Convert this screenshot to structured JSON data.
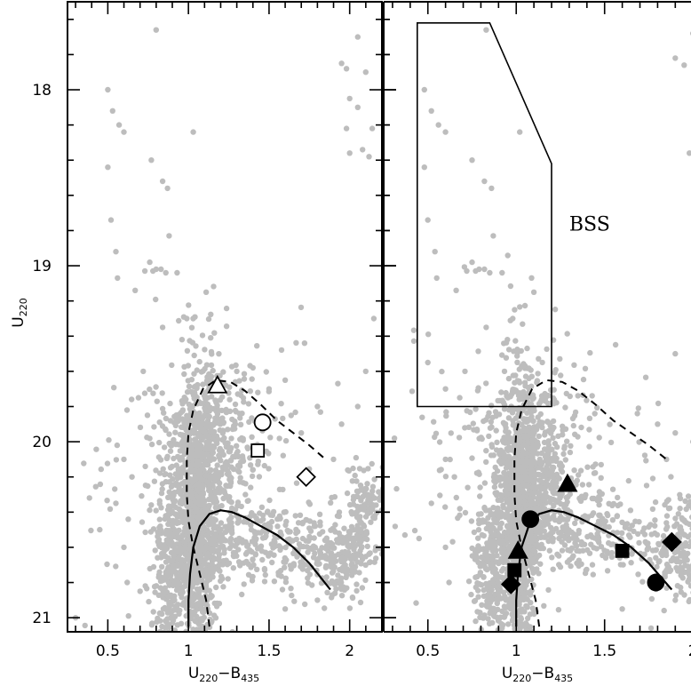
{
  "chart_data": [
    {
      "type": "scatter",
      "panel": "left",
      "xlabel": {
        "main": "U",
        "sub1": "220",
        "sep": "−B",
        "sub2": "435"
      },
      "ylabel": {
        "main": "U",
        "sub": "220"
      },
      "xlim": [
        0.25,
        2.2
      ],
      "ylim": [
        21.08,
        17.5
      ],
      "y_inverted": true,
      "x_ticks": [
        0.5,
        1,
        1.5,
        2
      ],
      "x_tick_labels": [
        "0.5",
        "1",
        "1.5",
        "2"
      ],
      "y_ticks": [
        18,
        19,
        20,
        21
      ],
      "y_tick_labels": [
        "18",
        "19",
        "20",
        "21"
      ],
      "point_color": "#bdbdbd",
      "isochrone_solid": [
        [
          1.0,
          21.05
        ],
        [
          1.0,
          20.9
        ],
        [
          1.01,
          20.75
        ],
        [
          1.03,
          20.6
        ],
        [
          1.07,
          20.48
        ],
        [
          1.13,
          20.41
        ],
        [
          1.2,
          20.39
        ],
        [
          1.27,
          20.4
        ],
        [
          1.35,
          20.43
        ],
        [
          1.45,
          20.48
        ],
        [
          1.55,
          20.53
        ],
        [
          1.65,
          20.6
        ],
        [
          1.75,
          20.69
        ],
        [
          1.88,
          20.84
        ]
      ],
      "isochrone_dashed": [
        [
          1.13,
          21.05
        ],
        [
          1.11,
          20.9
        ],
        [
          1.07,
          20.75
        ],
        [
          1.03,
          20.6
        ],
        [
          1.0,
          20.45
        ],
        [
          0.99,
          20.3
        ],
        [
          0.99,
          20.1
        ],
        [
          1.0,
          19.95
        ],
        [
          1.03,
          19.82
        ],
        [
          1.09,
          19.7
        ],
        [
          1.17,
          19.65
        ],
        [
          1.26,
          19.66
        ],
        [
          1.35,
          19.71
        ],
        [
          1.45,
          19.79
        ],
        [
          1.55,
          19.88
        ],
        [
          1.65,
          19.95
        ],
        [
          1.75,
          20.02
        ],
        [
          1.85,
          20.1
        ]
      ],
      "markers": [
        {
          "shape": "triangle",
          "filled": false,
          "x": 1.18,
          "y": 19.68
        },
        {
          "shape": "circle",
          "filled": false,
          "x": 1.46,
          "y": 19.89
        },
        {
          "shape": "square",
          "filled": false,
          "x": 1.43,
          "y": 20.05
        },
        {
          "shape": "diamond",
          "filled": false,
          "x": 1.73,
          "y": 20.2
        }
      ],
      "sparse_points": [
        [
          0.8,
          17.66
        ],
        [
          0.5,
          18.0
        ],
        [
          0.53,
          18.12
        ],
        [
          0.57,
          18.2
        ],
        [
          0.6,
          18.24
        ],
        [
          0.5,
          18.44
        ],
        [
          0.52,
          18.74
        ],
        [
          0.55,
          18.92
        ],
        [
          0.77,
          18.4
        ],
        [
          0.84,
          18.52
        ],
        [
          0.87,
          18.56
        ],
        [
          0.88,
          18.83
        ],
        [
          0.83,
          19.02
        ],
        [
          0.78,
          19.03
        ],
        [
          0.8,
          19.02
        ],
        [
          0.86,
          19.04
        ],
        [
          0.76,
          18.98
        ],
        [
          0.73,
          19.03
        ],
        [
          0.56,
          19.07
        ],
        [
          0.67,
          19.14
        ],
        [
          0.93,
          19.04
        ],
        [
          1.03,
          18.24
        ],
        [
          1.11,
          19.15
        ],
        [
          0.99,
          19.3
        ],
        [
          0.84,
          19.35
        ],
        [
          0.96,
          19.42
        ],
        [
          0.72,
          19.6
        ],
        [
          0.69,
          19.75
        ],
        [
          1.95,
          17.85
        ],
        [
          1.98,
          17.88
        ],
        [
          2.05,
          17.7
        ],
        [
          2.1,
          17.9
        ],
        [
          2.0,
          18.05
        ],
        [
          2.05,
          18.1
        ],
        [
          2.0,
          18.36
        ],
        [
          2.08,
          18.34
        ],
        [
          2.12,
          18.38
        ],
        [
          1.98,
          18.22
        ],
        [
          2.14,
          18.22
        ],
        [
          1.72,
          19.44
        ],
        [
          2.15,
          19.3
        ],
        [
          2.1,
          19.6
        ],
        [
          1.5,
          19.7
        ],
        [
          1.6,
          19.65
        ],
        [
          1.8,
          19.8
        ],
        [
          2.05,
          19.8
        ],
        [
          1.95,
          19.9
        ],
        [
          1.7,
          19.95
        ],
        [
          1.3,
          19.6
        ],
        [
          1.4,
          19.58
        ],
        [
          0.6,
          20.1
        ],
        [
          0.65,
          20.2
        ],
        [
          0.55,
          20.35
        ],
        [
          0.45,
          20.5
        ],
        [
          0.3,
          21.0
        ],
        [
          0.6,
          20.6
        ],
        [
          0.62,
          20.8
        ],
        [
          0.7,
          20.85
        ],
        [
          1.6,
          20.95
        ],
        [
          1.8,
          20.9
        ],
        [
          1.9,
          20.1
        ]
      ],
      "clouds": [
        {
          "cx": 1.05,
          "cy": 20.45,
          "sx": 0.06,
          "sy": 0.42,
          "n": 900
        },
        {
          "cx": 1.1,
          "cy": 20.2,
          "sx": 0.12,
          "sy": 0.28,
          "n": 450
        },
        {
          "cx": 1.45,
          "cy": 20.55,
          "sx": 0.22,
          "sy": 0.12,
          "n": 260
        },
        {
          "cx": 1.95,
          "cy": 20.65,
          "sx": 0.12,
          "sy": 0.14,
          "n": 220
        },
        {
          "cx": 2.1,
          "cy": 20.35,
          "sx": 0.06,
          "sy": 0.12,
          "n": 90
        },
        {
          "cx": 0.88,
          "cy": 20.75,
          "sx": 0.06,
          "sy": 0.22,
          "n": 240
        },
        {
          "cx": 1.2,
          "cy": 19.95,
          "sx": 0.22,
          "sy": 0.28,
          "n": 140
        },
        {
          "cx": 0.95,
          "cy": 20.2,
          "sx": 0.3,
          "sy": 0.45,
          "n": 130
        }
      ]
    },
    {
      "type": "scatter",
      "panel": "right",
      "xlabel": {
        "main": "U",
        "sub1": "220",
        "sep": "−B",
        "sub2": "435"
      },
      "xlim": [
        0.25,
        2.2
      ],
      "ylim": [
        21.08,
        17.5
      ],
      "y_inverted": true,
      "x_ticks": [
        0.5,
        1,
        1.5,
        2
      ],
      "x_tick_labels": [
        "0.5",
        "1",
        "1.5",
        "2"
      ],
      "y_ticks": [
        18,
        19,
        20,
        21
      ],
      "point_color": "#bdbdbd",
      "annotation": {
        "text": "BSS",
        "x": 1.3,
        "y": 18.8
      },
      "bss_box": [
        [
          0.44,
          17.62
        ],
        [
          0.85,
          17.62
        ],
        [
          1.2,
          18.42
        ],
        [
          1.2,
          19.8
        ],
        [
          0.44,
          19.8
        ]
      ],
      "isochrone_solid": [
        [
          1.0,
          21.05
        ],
        [
          1.0,
          20.9
        ],
        [
          1.01,
          20.75
        ],
        [
          1.03,
          20.6
        ],
        [
          1.07,
          20.48
        ],
        [
          1.13,
          20.41
        ],
        [
          1.2,
          20.39
        ],
        [
          1.27,
          20.4
        ],
        [
          1.35,
          20.43
        ],
        [
          1.45,
          20.48
        ],
        [
          1.55,
          20.53
        ],
        [
          1.65,
          20.6
        ],
        [
          1.75,
          20.69
        ],
        [
          1.88,
          20.84
        ]
      ],
      "isochrone_dashed": [
        [
          1.13,
          21.05
        ],
        [
          1.11,
          20.9
        ],
        [
          1.07,
          20.75
        ],
        [
          1.03,
          20.6
        ],
        [
          1.0,
          20.45
        ],
        [
          0.99,
          20.3
        ],
        [
          0.99,
          20.1
        ],
        [
          1.0,
          19.95
        ],
        [
          1.03,
          19.82
        ],
        [
          1.09,
          19.7
        ],
        [
          1.17,
          19.65
        ],
        [
          1.26,
          19.66
        ],
        [
          1.35,
          19.71
        ],
        [
          1.45,
          19.79
        ],
        [
          1.55,
          19.88
        ],
        [
          1.65,
          19.95
        ],
        [
          1.75,
          20.02
        ],
        [
          1.85,
          20.1
        ]
      ],
      "markers": [
        {
          "shape": "triangle",
          "filled": true,
          "x": 1.29,
          "y": 20.24
        },
        {
          "shape": "circle",
          "filled": true,
          "x": 1.08,
          "y": 20.44
        },
        {
          "shape": "circle",
          "filled": true,
          "x": 1.79,
          "y": 20.8
        },
        {
          "shape": "square",
          "filled": true,
          "x": 1.6,
          "y": 20.62
        },
        {
          "shape": "square",
          "filled": true,
          "x": 0.99,
          "y": 20.73
        },
        {
          "shape": "diamond",
          "filled": true,
          "x": 1.88,
          "y": 20.57
        },
        {
          "shape": "diamond",
          "filled": true,
          "x": 0.97,
          "y": 20.81
        },
        {
          "shape": "triangle",
          "filled": true,
          "x": 1.01,
          "y": 20.62
        }
      ],
      "sparse_points": [
        [
          0.83,
          17.66
        ],
        [
          0.48,
          18.0
        ],
        [
          0.52,
          18.12
        ],
        [
          0.56,
          18.2
        ],
        [
          0.6,
          18.24
        ],
        [
          0.48,
          18.44
        ],
        [
          0.5,
          18.74
        ],
        [
          0.54,
          18.92
        ],
        [
          0.75,
          18.4
        ],
        [
          0.82,
          18.52
        ],
        [
          0.86,
          18.56
        ],
        [
          0.87,
          18.83
        ],
        [
          0.82,
          19.02
        ],
        [
          0.77,
          19.03
        ],
        [
          0.79,
          19.02
        ],
        [
          0.85,
          19.04
        ],
        [
          0.75,
          18.98
        ],
        [
          0.72,
          19.03
        ],
        [
          0.55,
          19.07
        ],
        [
          0.66,
          19.14
        ],
        [
          0.92,
          19.04
        ],
        [
          1.02,
          18.24
        ],
        [
          1.1,
          19.15
        ],
        [
          0.98,
          19.3
        ],
        [
          0.83,
          19.35
        ],
        [
          0.95,
          19.42
        ],
        [
          0.71,
          19.6
        ],
        [
          0.68,
          19.75
        ],
        [
          0.5,
          19.55
        ],
        [
          0.6,
          19.7
        ],
        [
          1.9,
          17.82
        ],
        [
          1.95,
          17.86
        ],
        [
          2.0,
          17.68
        ],
        [
          2.05,
          17.9
        ],
        [
          1.98,
          18.36
        ],
        [
          2.08,
          18.34
        ],
        [
          2.12,
          18.2
        ],
        [
          1.9,
          19.5
        ],
        [
          1.9,
          19.95
        ],
        [
          2.0,
          20.0
        ],
        [
          1.8,
          19.9
        ],
        [
          0.6,
          20.1
        ],
        [
          0.65,
          20.2
        ],
        [
          0.52,
          20.35
        ],
        [
          0.45,
          20.55
        ],
        [
          0.6,
          20.6
        ],
        [
          0.62,
          20.8
        ],
        [
          1.6,
          20.95
        ],
        [
          1.9,
          20.9
        ],
        [
          1.85,
          20.1
        ]
      ],
      "clouds": [
        {
          "cx": 1.02,
          "cy": 20.45,
          "sx": 0.05,
          "sy": 0.4,
          "n": 900
        },
        {
          "cx": 1.08,
          "cy": 20.18,
          "sx": 0.12,
          "sy": 0.22,
          "n": 450
        },
        {
          "cx": 1.4,
          "cy": 20.5,
          "sx": 0.2,
          "sy": 0.12,
          "n": 240
        },
        {
          "cx": 1.95,
          "cy": 20.62,
          "sx": 0.14,
          "sy": 0.14,
          "n": 240
        },
        {
          "cx": 2.12,
          "cy": 20.35,
          "sx": 0.05,
          "sy": 0.12,
          "n": 80
        },
        {
          "cx": 0.86,
          "cy": 20.75,
          "sx": 0.05,
          "sy": 0.22,
          "n": 240
        },
        {
          "cx": 1.15,
          "cy": 19.95,
          "sx": 0.22,
          "sy": 0.25,
          "n": 130
        },
        {
          "cx": 0.92,
          "cy": 20.2,
          "sx": 0.28,
          "sy": 0.45,
          "n": 130
        }
      ]
    }
  ]
}
